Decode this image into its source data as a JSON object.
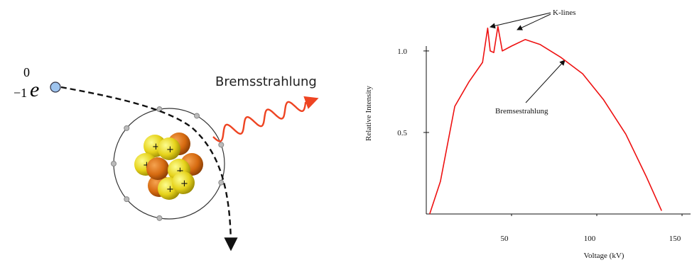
{
  "diagram": {
    "mass_number": "0",
    "charge": "−1",
    "symbol": "e",
    "radiation_label": "Bremsstrahlung"
  },
  "chart_data": {
    "type": "line",
    "x": [
      2,
      8.3,
      16.7,
      25,
      33,
      36,
      37.5,
      39.6,
      42,
      44.6,
      50,
      58,
      66.7,
      79,
      91.7,
      104,
      117,
      129,
      138
    ],
    "values": [
      0,
      0.2,
      0.66,
      0.81,
      0.93,
      1.14,
      1.0,
      0.99,
      1.15,
      1.0,
      1.03,
      1.07,
      1.04,
      0.96,
      0.86,
      0.7,
      0.49,
      0.23,
      0.02
    ],
    "color": "#ee1111",
    "xlim": [
      0,
      155
    ],
    "ylim": [
      0,
      1.03
    ],
    "xticks": [
      50,
      100,
      150
    ],
    "yticks": [
      0.5,
      {
        "value": 1,
        "label": "1.0"
      }
    ],
    "xlabel": "Voltage (kV)",
    "ylabel": "Relative Intensity",
    "annotations": [
      "K-lines",
      "Bremsestrahlung"
    ]
  }
}
